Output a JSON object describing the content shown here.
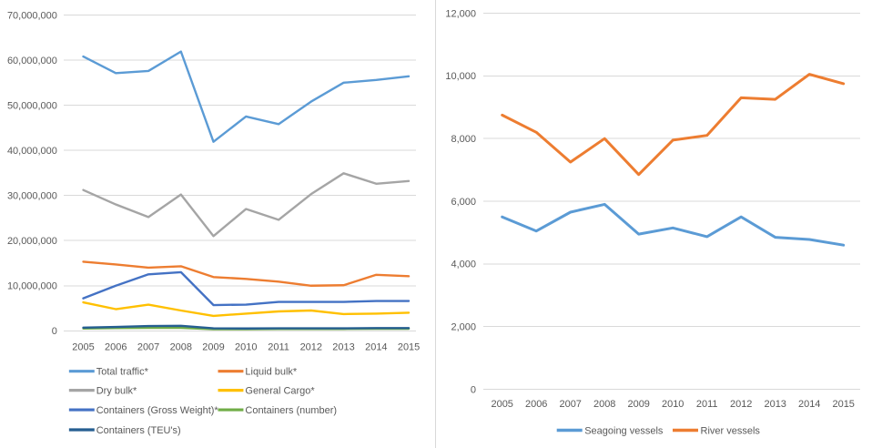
{
  "page": {
    "background": "#ffffff",
    "divider_color": "#d9d9d9"
  },
  "grid_color": "#d9d9d9",
  "text_colors": {
    "axis": "#595959",
    "legend": "#595959"
  },
  "chart_data": [
    {
      "type": "line",
      "name": "cargo-traffic-chart",
      "title": "",
      "categories": [
        "2005",
        "2006",
        "2007",
        "2008",
        "2009",
        "2010",
        "2011",
        "2012",
        "2013",
        "2014",
        "2015"
      ],
      "series": [
        {
          "name": "Total traffic*",
          "color": "#5B9BD5",
          "values": [
            60800000,
            57100000,
            57600000,
            61900000,
            41900000,
            47500000,
            45800000,
            50800000,
            55000000,
            55600000,
            56400000
          ]
        },
        {
          "name": "Liquid bulk*",
          "color": "#ED7D31",
          "values": [
            15300000,
            14700000,
            14000000,
            14300000,
            11900000,
            11500000,
            10900000,
            10000000,
            10100000,
            12400000,
            12100000
          ]
        },
        {
          "name": "Dry bulk*",
          "color": "#A5A5A5",
          "values": [
            31200000,
            28000000,
            25200000,
            30200000,
            21000000,
            27000000,
            24600000,
            30300000,
            34900000,
            32600000,
            33200000
          ]
        },
        {
          "name": "General Cargo*",
          "color": "#FFC000",
          "values": [
            6300000,
            4800000,
            5800000,
            4500000,
            3300000,
            3800000,
            4300000,
            4500000,
            3700000,
            3800000,
            4000000
          ]
        },
        {
          "name": "Containers (Gross Weight)*",
          "color": "#4472C4",
          "values": [
            7200000,
            10000000,
            12500000,
            13000000,
            5700000,
            5800000,
            6400000,
            6400000,
            6400000,
            6600000,
            6600000
          ]
        },
        {
          "name": "Containers (number)",
          "color": "#70AD47",
          "values": [
            500000,
            600000,
            650000,
            650000,
            350000,
            350000,
            400000,
            400000,
            400000,
            450000,
            450000
          ]
        },
        {
          "name": "Containers (TEU's)",
          "color": "#255E91",
          "values": [
            700000,
            850000,
            1050000,
            1100000,
            550000,
            500000,
            550000,
            550000,
            550000,
            600000,
            600000
          ]
        }
      ],
      "xlabel": "",
      "ylabel": "",
      "ylim": [
        0,
        70000000
      ],
      "ytick_labels": [
        "0",
        "10,000,000",
        "20,000,000",
        "30,000,000",
        "40,000,000",
        "50,000,000",
        "60,000,000",
        "70,000,000"
      ],
      "grid": true,
      "legend_position": "bottom-left-two-columns"
    },
    {
      "type": "line",
      "name": "vessels-chart",
      "title": "",
      "categories": [
        "2005",
        "2006",
        "2007",
        "2008",
        "2009",
        "2010",
        "2011",
        "2012",
        "2013",
        "2014",
        "2015"
      ],
      "series": [
        {
          "name": "Seagoing vessels",
          "color": "#5B9BD5",
          "values": [
            5500,
            5050,
            5650,
            5900,
            4950,
            5150,
            4870,
            5500,
            4850,
            4780,
            4600
          ]
        },
        {
          "name": "River vessels",
          "color": "#ED7D31",
          "values": [
            8750,
            8200,
            7250,
            8000,
            6850,
            7950,
            8100,
            9300,
            9250,
            10050,
            9750
          ]
        }
      ],
      "xlabel": "",
      "ylabel": "",
      "ylim": [
        0,
        12000
      ],
      "ytick_labels": [
        "0",
        "2,000",
        "4,000",
        "6,000",
        "8,000",
        "10,000",
        "12,000"
      ],
      "grid": true,
      "legend_position": "bottom-center-row"
    }
  ]
}
